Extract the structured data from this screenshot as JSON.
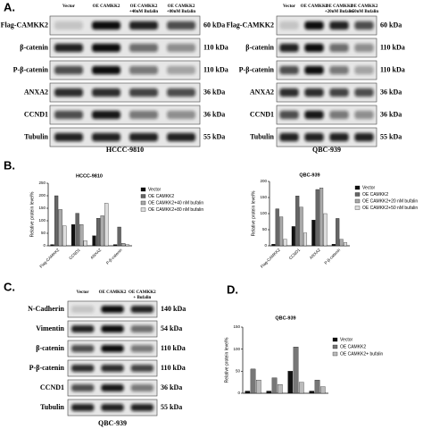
{
  "panel_a": {
    "label": "A.",
    "blots": [
      {
        "cell_line": "HCCC-9810",
        "lanes": [
          [
            "Vector"
          ],
          [
            "OE CAMKK2"
          ],
          [
            "OE CAMKK2",
            "+40nM Bufalin"
          ],
          [
            "OE CAMKK2",
            "+80nM Bufalin"
          ]
        ],
        "rows": [
          {
            "protein": "Flag-CAMKK2",
            "size": "60 kDa"
          },
          {
            "protein": "β-catenin",
            "size": "110 kDa"
          },
          {
            "protein": "P-β-catenin",
            "size": "110 kDa"
          },
          {
            "protein": "ANXA2",
            "size": "36 kDa"
          },
          {
            "protein": "CCND1",
            "size": "36 kDa"
          },
          {
            "protein": "Tubulin",
            "size": "55 kDa"
          }
        ]
      },
      {
        "cell_line": "QBC-939",
        "lanes": [
          [
            "Vector"
          ],
          [
            "OE CAMKK2"
          ],
          [
            "OE CAMKK2",
            "+20nM Bufalin"
          ],
          [
            "OE CAMKK2",
            "+50nM Bufalin"
          ]
        ],
        "rows": [
          {
            "protein": "Flag-CAMKK2",
            "size": "60 kDa"
          },
          {
            "protein": "β-catenin",
            "size": "110 kDa"
          },
          {
            "protein": "P-β-catenin",
            "size": "110 kDa"
          },
          {
            "protein": "ANXA2",
            "size": "36 kDa"
          },
          {
            "protein": "CCND1",
            "size": "36 kDa"
          },
          {
            "protein": "Tubulin",
            "size": "55 kDa"
          }
        ]
      }
    ]
  },
  "panel_b": {
    "label": "B."
  },
  "panel_c": {
    "label": "C.",
    "blots": [
      {
        "cell_line": "QBC-939",
        "lanes": [
          [
            "Vector"
          ],
          [
            "OE CAMKK2"
          ],
          [
            "OE CAMKK2",
            "+ Bufalin"
          ]
        ],
        "rows": [
          {
            "protein": "N-Cadherin",
            "size": "140 kDa"
          },
          {
            "protein": "Vimentin",
            "size": "54 kDa"
          },
          {
            "protein": "β-catenin",
            "size": "110 kDa"
          },
          {
            "protein": "P-β-catenin",
            "size": "110 kDa"
          },
          {
            "protein": "CCND1",
            "size": "36 kDa"
          },
          {
            "protein": "Tubulin",
            "size": "55 kDa"
          }
        ]
      }
    ]
  },
  "panel_d": {
    "label": "D."
  },
  "chart_data": [
    {
      "type": "bar",
      "title": "HCCC-9810",
      "ylabel": "Relative protein level%",
      "categories": [
        "Flag-CAMKK2",
        "CCND1",
        "ANXA2",
        "P-β-catenin"
      ],
      "series": [
        {
          "name": "Vector",
          "color": "#111111",
          "values": [
            5,
            85,
            40,
            5
          ]
        },
        {
          "name": "OE CAMKK2",
          "color": "#666666",
          "values": [
            200,
            130,
            110,
            75
          ]
        },
        {
          "name": "OE CAMKK2+40 nM bufalin",
          "color": "#aaaaaa",
          "values": [
            145,
            85,
            120,
            10
          ]
        },
        {
          "name": "OE CAMKK2+80 nM bufalin",
          "color": "#dddddd",
          "values": [
            80,
            20,
            170,
            5
          ]
        }
      ],
      "ylim": [
        0,
        250
      ],
      "yticks": [
        0,
        50,
        100,
        150,
        200,
        250
      ]
    },
    {
      "type": "bar",
      "title": "QBC-939",
      "ylabel": "Relative protein level%",
      "categories": [
        "Flag-CAMKK2",
        "CCND1",
        "ANXA2",
        "P-β-catenin"
      ],
      "series": [
        {
          "name": "Vector",
          "color": "#111111",
          "values": [
            5,
            60,
            80,
            5
          ]
        },
        {
          "name": "OE CAMKK2",
          "color": "#666666",
          "values": [
            115,
            155,
            175,
            85
          ]
        },
        {
          "name": "OE CAMKK2+20 nM bufalin",
          "color": "#aaaaaa",
          "values": [
            90,
            120,
            180,
            20
          ]
        },
        {
          "name": "OE CAMKK2+50 nM bufalin",
          "color": "#dddddd",
          "values": [
            20,
            40,
            100,
            10
          ]
        }
      ],
      "ylim": [
        0,
        200
      ],
      "yticks": [
        0,
        50,
        100,
        150,
        200
      ]
    },
    {
      "type": "bar",
      "title": "QBC-939",
      "ylabel": "Relative protein level%",
      "categories": [
        null,
        null,
        null,
        null
      ],
      "series": [
        {
          "name": "Vector",
          "color": "#111111",
          "values": [
            5,
            5,
            50,
            5
          ]
        },
        {
          "name": "OE CAMKK2",
          "color": "#777777",
          "values": [
            55,
            35,
            105,
            30
          ]
        },
        {
          "name": "OE CAMKK2+ bufalin",
          "color": "#bbbbbb",
          "values": [
            30,
            20,
            25,
            15
          ]
        }
      ],
      "ylim": [
        0,
        150
      ],
      "yticks": [
        0,
        50,
        100,
        150
      ]
    }
  ]
}
